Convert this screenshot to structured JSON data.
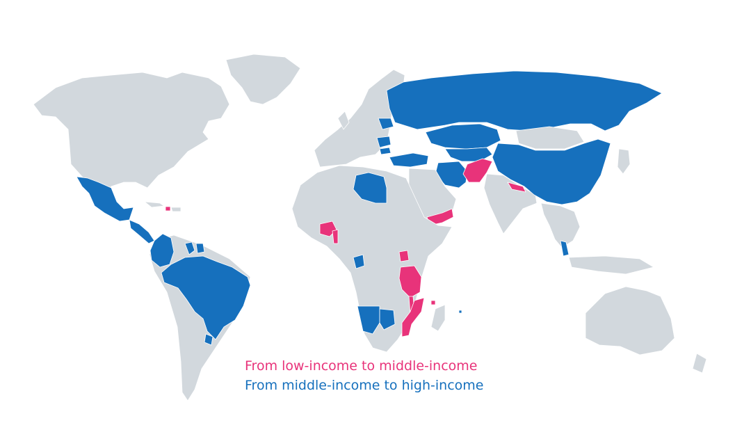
{
  "colors": {
    "land": "#d2d8dd",
    "border": "#ffffff",
    "low_to_middle": "#e8337a",
    "middle_to_high": "#1670bd",
    "background": "#ffffff"
  },
  "legend": {
    "low_to_middle": "From low-income to middle-income",
    "middle_to_high": "From middle-income to high-income"
  },
  "regions": [
    {
      "name": "north-america",
      "category": "none"
    },
    {
      "name": "greenland",
      "category": "none"
    },
    {
      "name": "mexico",
      "category": "middle_to_high"
    },
    {
      "name": "central-america",
      "category": "middle_to_high"
    },
    {
      "name": "caribbean",
      "category": "none"
    },
    {
      "name": "haiti",
      "category": "low_to_middle"
    },
    {
      "name": "colombia",
      "category": "middle_to_high"
    },
    {
      "name": "guyana",
      "category": "middle_to_high"
    },
    {
      "name": "suriname",
      "category": "middle_to_high"
    },
    {
      "name": "south-america",
      "category": "none"
    },
    {
      "name": "brazil",
      "category": "middle_to_high"
    },
    {
      "name": "uruguay",
      "category": "middle_to_high"
    },
    {
      "name": "europe",
      "category": "none"
    },
    {
      "name": "belarus",
      "category": "middle_to_high"
    },
    {
      "name": "romania",
      "category": "middle_to_high"
    },
    {
      "name": "bulgaria",
      "category": "middle_to_high"
    },
    {
      "name": "turkey",
      "category": "middle_to_high"
    },
    {
      "name": "russia",
      "category": "middle_to_high"
    },
    {
      "name": "kazakhstan",
      "category": "middle_to_high"
    },
    {
      "name": "central-asia",
      "category": "middle_to_high"
    },
    {
      "name": "china",
      "category": "middle_to_high"
    },
    {
      "name": "mongolia",
      "category": "none"
    },
    {
      "name": "iran",
      "category": "middle_to_high"
    },
    {
      "name": "afghanistan",
      "category": "low_to_middle"
    },
    {
      "name": "nepal",
      "category": "low_to_middle"
    },
    {
      "name": "india",
      "category": "none"
    },
    {
      "name": "middle-east",
      "category": "none"
    },
    {
      "name": "yemen",
      "category": "low_to_middle"
    },
    {
      "name": "africa",
      "category": "none"
    },
    {
      "name": "libya",
      "category": "middle_to_high"
    },
    {
      "name": "burkina-faso",
      "category": "low_to_middle"
    },
    {
      "name": "benin",
      "category": "low_to_middle"
    },
    {
      "name": "gabon",
      "category": "middle_to_high"
    },
    {
      "name": "uganda",
      "category": "low_to_middle"
    },
    {
      "name": "tanzania",
      "category": "low_to_middle"
    },
    {
      "name": "malawi",
      "category": "low_to_middle"
    },
    {
      "name": "mozambique",
      "category": "low_to_middle"
    },
    {
      "name": "comoros",
      "category": "low_to_middle"
    },
    {
      "name": "madagascar",
      "category": "none"
    },
    {
      "name": "namibia",
      "category": "middle_to_high"
    },
    {
      "name": "botswana",
      "category": "middle_to_high"
    },
    {
      "name": "mauritius",
      "category": "middle_to_high"
    },
    {
      "name": "southeast-asia",
      "category": "none"
    },
    {
      "name": "malaysia",
      "category": "middle_to_high"
    },
    {
      "name": "indonesia",
      "category": "none"
    },
    {
      "name": "japan",
      "category": "none"
    },
    {
      "name": "australia",
      "category": "none"
    },
    {
      "name": "new-zealand",
      "category": "none"
    }
  ]
}
